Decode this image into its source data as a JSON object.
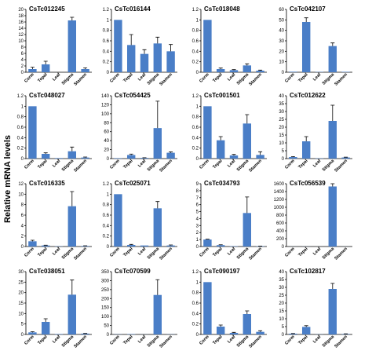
{
  "figure": {
    "ylabel": "Relative mRNA levels"
  },
  "chart_data": [
    {
      "type": "bar",
      "title": "CsTc012245",
      "categories": [
        "Corm",
        "Tepal",
        "Leaf",
        "Stigma",
        "Stamen"
      ],
      "values": [
        1,
        2.5,
        0,
        16.5,
        1
      ],
      "errors": [
        0.6,
        1,
        0,
        1,
        0.4
      ],
      "ylim": [
        0,
        20
      ],
      "yticks": [
        "0",
        "2",
        "4",
        "6",
        "8",
        "10",
        "12",
        "14",
        "16",
        "18",
        "20"
      ]
    },
    {
      "type": "bar",
      "title": "CsTc016144",
      "categories": [
        "Corm",
        "Tepal",
        "Leaf",
        "Stigma",
        "Stamen"
      ],
      "values": [
        1,
        0.52,
        0.35,
        0.55,
        0.4
      ],
      "errors": [
        0,
        0.2,
        0.08,
        0.12,
        0.13
      ],
      "ylim": [
        0,
        1.2
      ],
      "yticks": [
        "0",
        "0.2",
        "0.4",
        "0.6",
        "0.8",
        "1",
        "1.2"
      ]
    },
    {
      "type": "bar",
      "title": "CsTc018048",
      "categories": [
        "Corm",
        "Tepal",
        "Leaf",
        "Stigma",
        "Stamen"
      ],
      "values": [
        1,
        0.06,
        0.04,
        0.13,
        0.03
      ],
      "errors": [
        0,
        0.02,
        0.01,
        0.03,
        0.01
      ],
      "ylim": [
        0,
        1.2
      ],
      "yticks": [
        "0",
        "0.2",
        "0.4",
        "0.6",
        "0.8",
        "1",
        "1.2"
      ]
    },
    {
      "type": "bar",
      "title": "CsTc042107",
      "categories": [
        "Corm",
        "Tepal",
        "Leaf",
        "Stigma",
        "Stamen"
      ],
      "values": [
        0.5,
        48,
        0.3,
        25,
        0.4
      ],
      "errors": [
        0,
        4,
        0,
        3,
        0
      ],
      "ylim": [
        0,
        60
      ],
      "yticks": [
        "0",
        "10",
        "20",
        "30",
        "40",
        "50",
        "60"
      ]
    },
    {
      "type": "bar",
      "title": "CsTc048027",
      "categories": [
        "Corm",
        "Tepal",
        "Leaf",
        "Stigma",
        "Stamen"
      ],
      "values": [
        1,
        0.09,
        0.01,
        0.14,
        0.02
      ],
      "errors": [
        0,
        0.02,
        0,
        0.08,
        0.01
      ],
      "ylim": [
        0,
        1.2
      ],
      "yticks": [
        "0",
        "0.2",
        "0.4",
        "0.6",
        "0.8",
        "1",
        "1.2"
      ]
    },
    {
      "type": "bar",
      "title": "CsTc054425",
      "categories": [
        "Corm",
        "Tepal",
        "Leaf",
        "Stigma",
        "Stamen"
      ],
      "values": [
        1,
        8,
        1.5,
        68,
        13
      ],
      "errors": [
        0,
        2,
        0.5,
        60,
        2
      ],
      "ylim": [
        0,
        140
      ],
      "yticks": [
        "0",
        "20",
        "40",
        "60",
        "80",
        "100",
        "120",
        "140"
      ]
    },
    {
      "type": "bar",
      "title": "CsTc001501",
      "categories": [
        "Corm",
        "Tepal",
        "Leaf",
        "Stigma",
        "Stamen"
      ],
      "values": [
        1,
        0.35,
        0.06,
        0.67,
        0.07
      ],
      "errors": [
        0,
        0.07,
        0.02,
        0.17,
        0.06
      ],
      "ylim": [
        0,
        1.2
      ],
      "yticks": [
        "0",
        "0.2",
        "0.4",
        "0.6",
        "0.8",
        "1",
        "1.2"
      ]
    },
    {
      "type": "bar",
      "title": "CsTc012622",
      "categories": [
        "Corm",
        "Tepal",
        "Leaf",
        "Stigma",
        "Stamen"
      ],
      "values": [
        1,
        11,
        0.2,
        24,
        0.7
      ],
      "errors": [
        0.3,
        3,
        0,
        10,
        0.2
      ],
      "ylim": [
        0,
        40
      ],
      "yticks": [
        "0",
        "5",
        "10",
        "15",
        "20",
        "25",
        "30",
        "35",
        "40"
      ]
    },
    {
      "type": "bar",
      "title": "CsTc016335",
      "categories": [
        "Corm",
        "Tepal",
        "Leaf",
        "Stigma",
        "Stamen"
      ],
      "values": [
        1,
        0.2,
        0.05,
        7.7,
        0.1
      ],
      "errors": [
        0.2,
        0.05,
        0,
        2.8,
        0.05
      ],
      "ylim": [
        0,
        12
      ],
      "yticks": [
        "0",
        "2",
        "4",
        "6",
        "8",
        "10",
        "12"
      ]
    },
    {
      "type": "bar",
      "title": "CsTc025071",
      "categories": [
        "Corm",
        "Tepal",
        "Leaf",
        "Stigma",
        "Stamen"
      ],
      "values": [
        1,
        0.03,
        0.02,
        0.73,
        0.02
      ],
      "errors": [
        0,
        0.01,
        0,
        0.13,
        0.01
      ],
      "ylim": [
        0,
        1.2
      ],
      "yticks": [
        "0",
        "0.2",
        "0.4",
        "0.6",
        "0.8",
        "1",
        "1.2"
      ]
    },
    {
      "type": "bar",
      "title": "CsTc034793",
      "categories": [
        "Corm",
        "Tepal",
        "Leaf",
        "Stigma",
        "Stamen"
      ],
      "values": [
        1,
        0.2,
        0.05,
        4.8,
        0.05
      ],
      "errors": [
        0.05,
        0.05,
        0,
        2.3,
        0.02
      ],
      "ylim": [
        0,
        9
      ],
      "yticks": [
        "0",
        "1",
        "2",
        "3",
        "4",
        "5",
        "6",
        "7",
        "8",
        "9"
      ]
    },
    {
      "type": "bar",
      "title": "CsTc056539",
      "categories": [
        "Corm",
        "Tepal",
        "Leaf",
        "Stigma",
        "Stamen"
      ],
      "values": [
        1,
        2,
        0.5,
        1530,
        1
      ],
      "errors": [
        0,
        0,
        0,
        80,
        0
      ],
      "ylim": [
        0,
        1600
      ],
      "yticks": [
        "0",
        "200",
        "400",
        "600",
        "800",
        "1000",
        "1200",
        "1400",
        "1600"
      ]
    },
    {
      "type": "bar",
      "title": "CsTc038051",
      "categories": [
        "Corm",
        "Tepal",
        "Leaf",
        "Stigma",
        "Stamen"
      ],
      "values": [
        1,
        6,
        0.2,
        19,
        0.4
      ],
      "errors": [
        0.3,
        1.5,
        0,
        7,
        0.1
      ],
      "ylim": [
        0,
        30
      ],
      "yticks": [
        "0",
        "5",
        "10",
        "15",
        "20",
        "25",
        "30"
      ]
    },
    {
      "type": "bar",
      "title": "CsTc070599",
      "categories": [
        "Corm",
        "Tepal",
        "Leaf",
        "Stigma",
        "Stamen"
      ],
      "values": [
        1,
        2,
        0.5,
        220,
        1
      ],
      "errors": [
        0,
        0,
        0,
        85,
        0
      ],
      "ylim": [
        0,
        350
      ],
      "yticks": [
        "0",
        "50",
        "100",
        "150",
        "200",
        "250",
        "300",
        "350"
      ]
    },
    {
      "type": "bar",
      "title": "CsTc090197",
      "categories": [
        "Corm",
        "Tepal",
        "Leaf",
        "Stigma",
        "Stamen"
      ],
      "values": [
        1,
        0.15,
        0.03,
        0.39,
        0.05
      ],
      "errors": [
        0,
        0.03,
        0.01,
        0.06,
        0.02
      ],
      "ylim": [
        0,
        1.2
      ],
      "yticks": [
        "0",
        "0.2",
        "0.4",
        "0.6",
        "0.8",
        "1",
        "1.2"
      ]
    },
    {
      "type": "bar",
      "title": "CsTc102817",
      "categories": [
        "Corm",
        "Tepal",
        "Leaf",
        "Stigma",
        "Stamen"
      ],
      "values": [
        0.5,
        4.8,
        0.1,
        29,
        0.3
      ],
      "errors": [
        0.1,
        0.8,
        0,
        3.5,
        0.1
      ],
      "ylim": [
        0,
        40
      ],
      "yticks": [
        "0",
        "5",
        "10",
        "15",
        "20",
        "25",
        "30",
        "35",
        "40"
      ]
    }
  ]
}
